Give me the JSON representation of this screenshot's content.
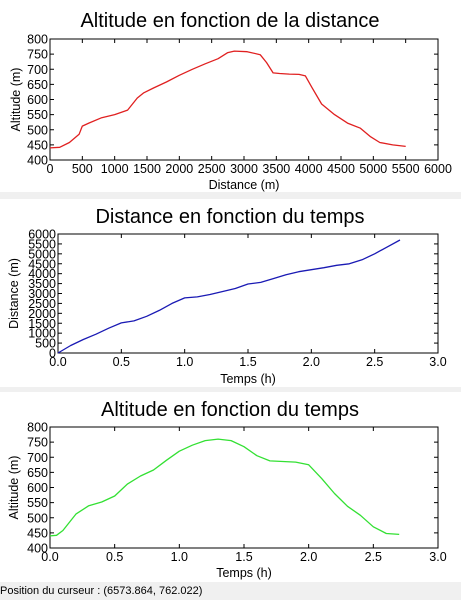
{
  "chart_data": [
    {
      "type": "line",
      "title": "Altitude en fonction de la distance",
      "xlabel": "Distance (m)",
      "ylabel": "Altitude (m)",
      "xlim": [
        0,
        6000
      ],
      "ylim": [
        400,
        800
      ],
      "x_ticks": [
        "0",
        "500",
        "1000",
        "1500",
        "2000",
        "2500",
        "3000",
        "3500",
        "4000",
        "4500",
        "5000",
        "5500",
        "6000"
      ],
      "y_ticks": [
        "400",
        "450",
        "500",
        "550",
        "600",
        "650",
        "700",
        "750",
        "800"
      ],
      "grid": false,
      "color": "#e02020",
      "series": [
        {
          "x": [
            0,
            150,
            300,
            450,
            500,
            600,
            800,
            1000,
            1200,
            1350,
            1450,
            1600,
            1800,
            2000,
            2200,
            2400,
            2600,
            2750,
            2850,
            3050,
            3250,
            3350,
            3450,
            3550,
            3700,
            3850,
            3950,
            4050,
            4200,
            4400,
            4600,
            4800,
            4950,
            5100,
            5300,
            5500
          ],
          "y": [
            440,
            442,
            458,
            485,
            512,
            522,
            540,
            550,
            565,
            605,
            622,
            638,
            658,
            680,
            700,
            718,
            735,
            755,
            760,
            758,
            748,
            722,
            688,
            686,
            684,
            683,
            678,
            640,
            585,
            550,
            522,
            505,
            478,
            458,
            450,
            445
          ]
        }
      ]
    },
    {
      "type": "line",
      "title": "Distance en fonction du temps",
      "xlabel": "Temps (h)",
      "ylabel": "Distance (m)",
      "xlim": [
        0,
        3
      ],
      "ylim": [
        0,
        6000
      ],
      "x_ticks": [
        "0.0",
        "0.5",
        "1.0",
        "1.5",
        "2.0",
        "2.5",
        "3.0"
      ],
      "y_ticks": [
        "0",
        "500",
        "1000",
        "1500",
        "2000",
        "2500",
        "3000",
        "3500",
        "4000",
        "4500",
        "5000",
        "5500",
        "6000"
      ],
      "grid": false,
      "color": "#1a1ab4",
      "series": [
        {
          "x": [
            0,
            0.1,
            0.2,
            0.3,
            0.4,
            0.5,
            0.6,
            0.7,
            0.8,
            0.9,
            1.0,
            1.1,
            1.2,
            1.3,
            1.4,
            1.5,
            1.6,
            1.7,
            1.8,
            1.9,
            2.0,
            2.1,
            2.2,
            2.3,
            2.4,
            2.5,
            2.6,
            2.7
          ],
          "y": [
            0,
            380,
            680,
            950,
            1250,
            1520,
            1620,
            1850,
            2150,
            2500,
            2780,
            2830,
            2950,
            3100,
            3250,
            3480,
            3560,
            3750,
            3950,
            4100,
            4200,
            4300,
            4420,
            4500,
            4700,
            5000,
            5350,
            5700
          ]
        }
      ]
    },
    {
      "type": "line",
      "title": "Altitude en fonction du temps",
      "xlabel": "Temps (h)",
      "ylabel": "Altitude (m)",
      "xlim": [
        0,
        3
      ],
      "ylim": [
        400,
        800
      ],
      "x_ticks": [
        "0.0",
        "0.5",
        "1.0",
        "1.5",
        "2.0",
        "2.5",
        "3.0"
      ],
      "y_ticks": [
        "400",
        "450",
        "500",
        "550",
        "600",
        "650",
        "700",
        "750",
        "800"
      ],
      "grid": false,
      "color": "#33e033",
      "series": [
        {
          "x": [
            0,
            0.05,
            0.1,
            0.2,
            0.3,
            0.4,
            0.5,
            0.6,
            0.7,
            0.8,
            0.9,
            1.0,
            1.1,
            1.2,
            1.3,
            1.4,
            1.5,
            1.6,
            1.7,
            1.8,
            1.9,
            2.0,
            2.1,
            2.2,
            2.3,
            2.4,
            2.5,
            2.6,
            2.7
          ],
          "y": [
            440,
            442,
            458,
            512,
            540,
            552,
            572,
            612,
            638,
            658,
            690,
            720,
            740,
            755,
            760,
            755,
            735,
            705,
            688,
            686,
            684,
            675,
            630,
            580,
            538,
            508,
            470,
            448,
            445
          ]
        }
      ]
    }
  ],
  "status_bar": {
    "cursor_position": "Position du curseur : (6573.864, 762.022)"
  }
}
